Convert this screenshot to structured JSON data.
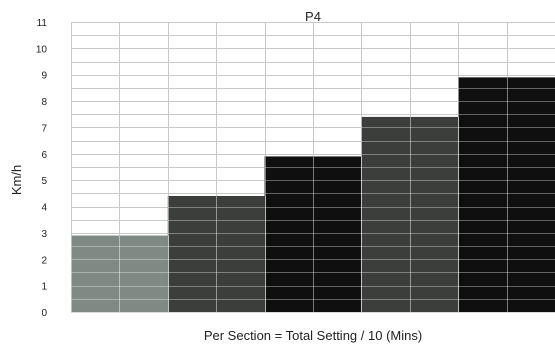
{
  "chart_data": {
    "type": "bar",
    "title": "P4",
    "xlabel": "Per Section = Total Setting / 10 (Mins)",
    "ylabel": "Km/h",
    "ylim": [
      0,
      11
    ],
    "yticks": [
      "0",
      "1",
      "2",
      "3",
      "4",
      "5",
      "6",
      "7",
      "8",
      "9",
      "10",
      "11"
    ],
    "minor_gridlines_per_unit": 2,
    "x_sections": 10,
    "sections_per_bar": 2,
    "grid": true,
    "values": [
      2.9,
      4.4,
      5.9,
      7.4,
      8.9
    ],
    "colors": [
      "#7f8a85",
      "#3b3e3b",
      "#0f0f0f",
      "#3b3e3b",
      "#0f0f0f"
    ]
  }
}
